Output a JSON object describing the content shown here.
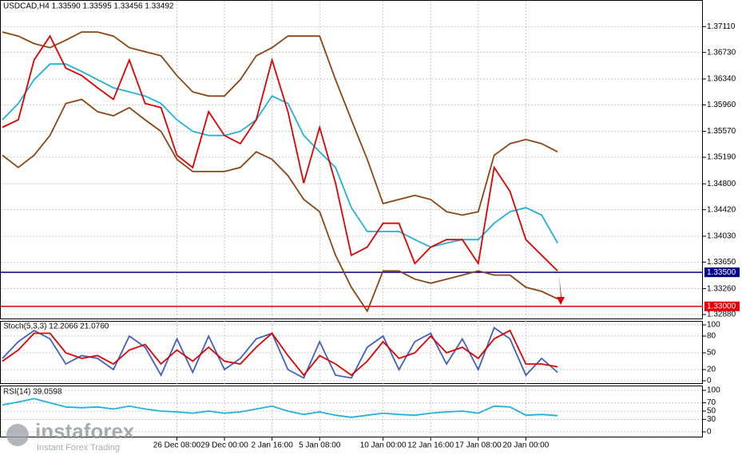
{
  "chart_data": [
    {
      "type": "line",
      "title": "USDCAD,H4 1.33590 1.33595 1.33456 1.33492",
      "grid": true,
      "categories": [
        null,
        null,
        null,
        null,
        null,
        null,
        null,
        null,
        null,
        null,
        null,
        "26 Dec 08:00",
        null,
        null,
        "29 Dec 00:00",
        null,
        null,
        "2 Jan 16:00",
        null,
        null,
        "5 Jan 08:00",
        null,
        null,
        null,
        "10 Jan 00:00",
        null,
        null,
        "12 Jan 16:00",
        null,
        null,
        "17 Jan 08:00",
        null,
        null,
        "20 Jan 00:00",
        null,
        null
      ],
      "ylim": [
        1.3281,
        1.375
      ],
      "yticks": [
        {
          "value": 1.3711,
          "label": "1.37110"
        },
        {
          "value": 1.3673,
          "label": "1.36730"
        },
        {
          "value": 1.3634,
          "label": "1.36340"
        },
        {
          "value": 1.3596,
          "label": "1.35960"
        },
        {
          "value": 1.3557,
          "label": "1.35570"
        },
        {
          "value": 1.3519,
          "label": "1.35190"
        },
        {
          "value": 1.348,
          "label": "1.34800"
        },
        {
          "value": 1.3442,
          "label": "1.34420"
        },
        {
          "value": 1.3403,
          "label": "1.34030"
        },
        {
          "value": 1.3365,
          "label": "1.33650"
        },
        {
          "value": 1.3326,
          "label": "1.33260"
        },
        {
          "value": 1.3288,
          "label": "1.32880"
        }
      ],
      "hlines": [
        {
          "value": 1.335,
          "label": "1.33500",
          "color": "#00008b"
        },
        {
          "value": 1.33,
          "label": "1.33000",
          "color": "#e00000"
        }
      ],
      "series": [
        {
          "color": "#8b4513",
          "values": [
            1.3703,
            1.3697,
            1.3686,
            1.368,
            1.3691,
            1.3703,
            1.3703,
            1.3697,
            1.368,
            1.3674,
            1.3668,
            1.3639,
            1.3615,
            1.3609,
            1.3609,
            1.3633,
            1.3668,
            1.368,
            1.3697,
            1.3697,
            1.3697,
            1.3633,
            1.3574,
            1.3516,
            1.3451,
            1.3457,
            1.3463,
            1.3457,
            1.3439,
            1.3434,
            1.3439,
            1.3522,
            1.3539,
            1.3545,
            1.3539,
            1.3527
          ]
        },
        {
          "color": "#8b4513",
          "values": [
            1.3522,
            1.3504,
            1.3522,
            1.3551,
            1.3598,
            1.3604,
            1.3586,
            1.358,
            1.3592,
            1.3574,
            1.3557,
            1.3516,
            1.3498,
            1.3498,
            1.3498,
            1.3504,
            1.3527,
            1.3516,
            1.3492,
            1.3457,
            1.3439,
            1.3375,
            1.3328,
            1.3293,
            1.3352,
            1.3352,
            1.334,
            1.3334,
            1.334,
            1.3346,
            1.3352,
            1.3346,
            1.3346,
            1.3328,
            1.3322,
            1.3311
          ]
        },
        {
          "color": "#20b2d8",
          "values": [
            1.3574,
            1.3598,
            1.3633,
            1.3656,
            1.3656,
            1.3645,
            1.3633,
            1.3621,
            1.3615,
            1.3609,
            1.3598,
            1.3574,
            1.3557,
            1.3551,
            1.3551,
            1.3557,
            1.3574,
            1.3609,
            1.3598,
            1.3551,
            1.3527,
            1.3504,
            1.3445,
            1.341,
            1.341,
            1.341,
            1.3398,
            1.3387,
            1.3393,
            1.3398,
            1.3398,
            1.3422,
            1.3439,
            1.3445,
            1.3434,
            1.3393
          ]
        },
        {
          "color": "#e00000",
          "values": [
            1.3563,
            1.3574,
            1.3662,
            1.3697,
            1.365,
            1.3639,
            1.3621,
            1.3604,
            1.3662,
            1.3598,
            1.3592,
            1.3522,
            1.3504,
            1.3586,
            1.3551,
            1.3539,
            1.3574,
            1.3662,
            1.3586,
            1.3481,
            1.3563,
            1.3481,
            1.3375,
            1.3387,
            1.3422,
            1.3422,
            1.3363,
            1.3387,
            1.3398,
            1.3398,
            1.3363,
            1.3504,
            1.3469,
            1.3398,
            1.3375,
            1.3352
          ]
        }
      ]
    },
    {
      "type": "line",
      "title": "Stoch(5,3,3) 12.2066 21.0760",
      "grid": true,
      "ylim": [
        0,
        100
      ],
      "yticks": [
        0,
        20,
        50,
        80,
        100
      ],
      "series": [
        {
          "color": "#4060c0",
          "values": [
            40,
            70,
            90,
            75,
            30,
            45,
            40,
            20,
            80,
            60,
            10,
            75,
            15,
            80,
            20,
            40,
            75,
            85,
            20,
            5,
            70,
            10,
            5,
            60,
            80,
            20,
            70,
            85,
            30,
            75,
            20,
            95,
            75,
            10,
            40,
            15
          ]
        },
        {
          "color": "#e00000",
          "values": [
            35,
            55,
            85,
            85,
            50,
            40,
            45,
            30,
            55,
            65,
            30,
            55,
            35,
            60,
            35,
            30,
            60,
            85,
            45,
            10,
            45,
            30,
            10,
            35,
            70,
            40,
            50,
            80,
            50,
            60,
            40,
            75,
            90,
            30,
            30,
            25
          ]
        }
      ]
    },
    {
      "type": "line",
      "title": "RSI(14) 39.0598",
      "grid": true,
      "ylim": [
        0,
        100
      ],
      "yticks": [
        0,
        30,
        50,
        70,
        100
      ],
      "series": [
        {
          "color": "#20b2d8",
          "values": [
            65,
            72,
            80,
            70,
            60,
            58,
            60,
            55,
            62,
            55,
            50,
            48,
            45,
            50,
            45,
            48,
            55,
            62,
            50,
            42,
            48,
            40,
            35,
            40,
            45,
            42,
            40,
            45,
            48,
            50,
            45,
            62,
            60,
            40,
            42,
            39
          ]
        }
      ]
    }
  ],
  "watermark": {
    "brand": "instaforex",
    "tagline": "Instant Forex Trading"
  }
}
